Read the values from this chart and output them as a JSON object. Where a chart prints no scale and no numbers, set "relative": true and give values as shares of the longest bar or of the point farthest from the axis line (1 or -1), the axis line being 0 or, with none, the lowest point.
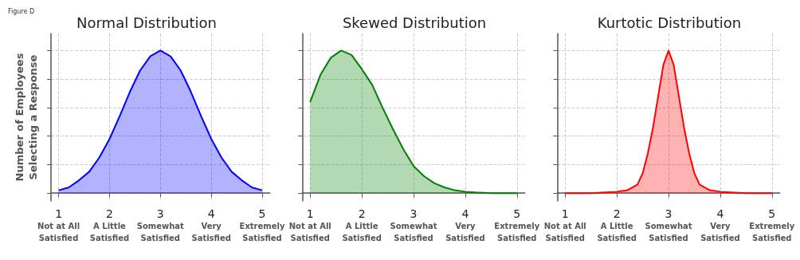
{
  "chart_data": [
    {
      "type": "area",
      "title": "Normal Distribution",
      "ylabel": "Number of Employees\nSelecting a Response",
      "annotations": [
        "Figure D"
      ],
      "relative": true,
      "grid": true,
      "tick_labels": "x",
      "xlim": [
        0.85,
        5.15
      ],
      "xticks": [
        {
          "value": 1,
          "label": "1\nNot at All\nSatisfied"
        },
        {
          "value": 2,
          "label": "2\nA Little\nSatisfied"
        },
        {
          "value": 3,
          "label": "3\nSomewhat\nSatisfied"
        },
        {
          "value": 4,
          "label": "4\nVery\nSatisfied"
        },
        {
          "value": 5,
          "label": "5\nExtremely\nSatisfied"
        }
      ],
      "series": [
        {
          "color": "#0000ff",
          "x": [
            1,
            1.2,
            1.4,
            1.6,
            1.8,
            2,
            2.2,
            2.4,
            2.6,
            2.8,
            3,
            3.2,
            3.4,
            3.6,
            3.8,
            4,
            4.2,
            4.4,
            4.6,
            4.8,
            5
          ],
          "values": [
            0.02,
            0.04,
            0.09,
            0.15,
            0.25,
            0.38,
            0.54,
            0.71,
            0.86,
            0.96,
            1,
            0.96,
            0.86,
            0.71,
            0.54,
            0.38,
            0.25,
            0.15,
            0.09,
            0.04,
            0.02
          ]
        }
      ]
    },
    {
      "type": "area",
      "title": "Skewed Distribution",
      "relative": true,
      "grid": true,
      "tick_labels": "x",
      "xlim": [
        0.85,
        5.15
      ],
      "xticks": [
        {
          "value": 1,
          "label": "1\nNot at All\nSatisfied"
        },
        {
          "value": 2,
          "label": "2\nA Little\nSatisfied"
        },
        {
          "value": 3,
          "label": "3\nSomewhat\nSatisfied"
        },
        {
          "value": 4,
          "label": "4\nVery\nSatisfied"
        },
        {
          "value": 5,
          "label": "5\nExtremely\nSatisfied"
        }
      ],
      "series": [
        {
          "color": "#008000",
          "x": [
            1,
            1.2,
            1.4,
            1.6,
            1.8,
            2,
            2.2,
            2.4,
            2.6,
            2.8,
            3,
            3.2,
            3.4,
            3.6,
            3.8,
            4,
            4.2,
            4.5,
            5
          ],
          "values": [
            0.64,
            0.83,
            0.95,
            1,
            0.97,
            0.87,
            0.76,
            0.6,
            0.45,
            0.31,
            0.19,
            0.12,
            0.07,
            0.04,
            0.02,
            0.01,
            0.005,
            0,
            0
          ]
        }
      ]
    },
    {
      "type": "area",
      "title": "Kurtotic Distribution",
      "relative": true,
      "grid": true,
      "tick_labels": "x",
      "xlim": [
        0.85,
        5.15
      ],
      "xticks": [
        {
          "value": 1,
          "label": "1\nNot at All\nSatisfied"
        },
        {
          "value": 2,
          "label": "2\nA Little\nSatisfied"
        },
        {
          "value": 3,
          "label": "3\nSomewhat\nSatisfied"
        },
        {
          "value": 4,
          "label": "4\nVery\nSatisfied"
        },
        {
          "value": 5,
          "label": "5\nExtremely\nSatisfied"
        }
      ],
      "series": [
        {
          "color": "#ff0000",
          "x": [
            1,
            1.5,
            2,
            2.2,
            2.4,
            2.5,
            2.6,
            2.7,
            2.8,
            2.9,
            3,
            3.1,
            3.2,
            3.3,
            3.4,
            3.5,
            3.6,
            3.8,
            4,
            4.5,
            5
          ],
          "values": [
            0,
            0,
            0.01,
            0.02,
            0.06,
            0.14,
            0.28,
            0.46,
            0.68,
            0.9,
            1,
            0.9,
            0.68,
            0.46,
            0.28,
            0.14,
            0.06,
            0.02,
            0.01,
            0,
            0
          ]
        }
      ]
    }
  ]
}
